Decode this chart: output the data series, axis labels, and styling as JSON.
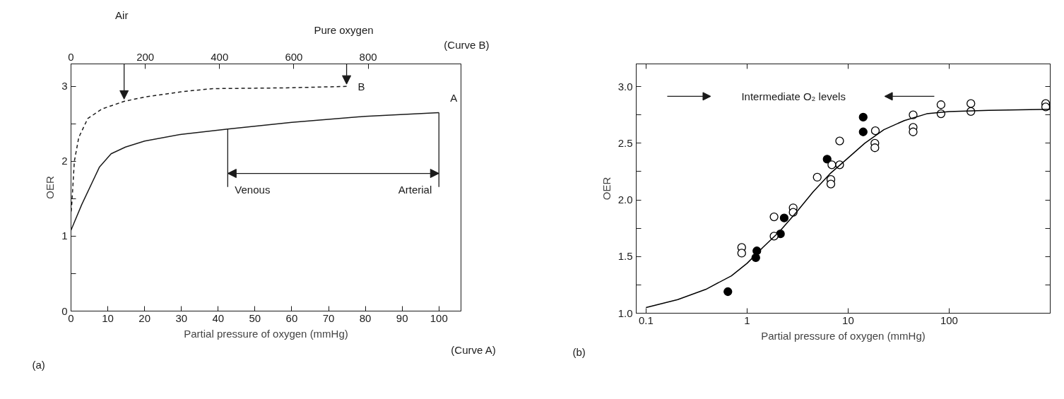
{
  "chart_data": [
    {
      "type": "line",
      "xlabel": "Partial pressure of oxygen (mmHg)",
      "ylabel": "OER",
      "x2label": "(Curve B)",
      "xlim": [
        0,
        106
      ],
      "xticks": [
        0,
        10,
        20,
        30,
        40,
        50,
        60,
        70,
        80,
        90,
        100
      ],
      "x2lim": [
        0,
        1050
      ],
      "x2ticks": [
        0,
        200,
        400,
        600,
        800
      ],
      "ylim": [
        0,
        3.3
      ],
      "yticks": [
        0,
        {
          "value": 0.5,
          "label": null
        },
        1,
        {
          "value": 1.5,
          "label": null
        },
        2,
        {
          "value": 2.5,
          "label": null
        },
        3
      ],
      "grid": false,
      "series": [
        {
          "name": "A",
          "color": "#1a1a1a",
          "line_style": "solid",
          "x": [
            0,
            2.9,
            7.7,
            10.9,
            14.8,
            20,
            30,
            42.6,
            60,
            80,
            100
          ],
          "values": [
            1.08,
            1.42,
            1.92,
            2.1,
            2.19,
            2.27,
            2.36,
            2.43,
            2.52,
            2.6,
            2.65
          ]
        },
        {
          "name": "B",
          "color": "#1a1a1a",
          "line_style": "dashed",
          "axis": "x2",
          "x": [
            0,
            2.4,
            9,
            21,
            45,
            84,
            143,
            200,
            300,
            382,
            578,
            742
          ],
          "values": [
            1.3,
            1.45,
            2.0,
            2.32,
            2.57,
            2.7,
            2.8,
            2.86,
            2.93,
            2.97,
            2.98,
            3.0
          ]
        }
      ],
      "annotations": [
        "Air",
        "Pure oxygen",
        {
          "text": "Venous",
          "x": 42.6,
          "y": 2.43
        },
        {
          "text": "Arterial",
          "x": 100,
          "y": 2.65
        },
        "(Curve A)",
        "(a)"
      ]
    },
    {
      "type": "scatter",
      "xlabel": "Partial pressure of oxygen (mmHg)",
      "ylabel": "OER",
      "log": "x",
      "xlim": [
        0.08,
        1000
      ],
      "xticks": [
        0.1,
        1,
        10,
        100
      ],
      "ylim": [
        1.0,
        3.2
      ],
      "yticks": [
        {
          "value": 1,
          "label": "1.0"
        },
        {
          "value": 1.25,
          "label": null
        },
        {
          "value": 1.5,
          "label": "1.5"
        },
        {
          "value": 1.75,
          "label": null
        },
        {
          "value": 2,
          "label": "2.0"
        },
        {
          "value": 2.25,
          "label": null
        },
        {
          "value": 2.5,
          "label": "2.5"
        },
        {
          "value": 2.75,
          "label": null
        },
        {
          "value": 3,
          "label": "3.0"
        }
      ],
      "grid": false,
      "series": [
        {
          "type": "scatter",
          "marker": "circle",
          "color": "#000000",
          "x": [
            0.646,
            1.25,
            1.22,
            2.14,
            2.33,
            6.2,
            14.1,
            14.1
          ],
          "values": [
            1.19,
            1.55,
            1.49,
            1.7,
            1.84,
            2.36,
            2.6,
            2.73
          ]
        },
        {
          "type": "scatter",
          "marker": "circle",
          "color": "#ffffff",
          "x": [
            0.885,
            0.885,
            1.85,
            1.85,
            2.86,
            2.86,
            4.95,
            6.75,
            6.75,
            6.9,
            8.25,
            8.25,
            18.6,
            18.4,
            18.4,
            44,
            44,
            44,
            83,
            83,
            164,
            164,
            902,
            902
          ],
          "values": [
            1.58,
            1.53,
            1.85,
            1.68,
            1.93,
            1.89,
            2.2,
            2.18,
            2.14,
            2.31,
            2.31,
            2.52,
            2.61,
            2.5,
            2.46,
            2.75,
            2.64,
            2.6,
            2.84,
            2.76,
            2.85,
            2.78,
            2.85,
            2.82
          ]
        },
        {
          "type": "line",
          "marker": "none",
          "color": "#000000",
          "x": [
            0.1,
            0.206,
            0.39,
            0.7,
            1,
            1.43,
            2.09,
            3.07,
            4.5,
            6.6,
            10,
            14.6,
            22.6,
            36,
            60,
            100,
            246,
            1000
          ],
          "values": [
            1.05,
            1.12,
            1.21,
            1.33,
            1.44,
            1.58,
            1.72,
            1.89,
            2.07,
            2.23,
            2.37,
            2.5,
            2.62,
            2.7,
            2.76,
            2.78,
            2.79,
            2.8
          ]
        }
      ],
      "annotations": [
        "Intermediate O₂ levels",
        "(b)"
      ]
    }
  ]
}
